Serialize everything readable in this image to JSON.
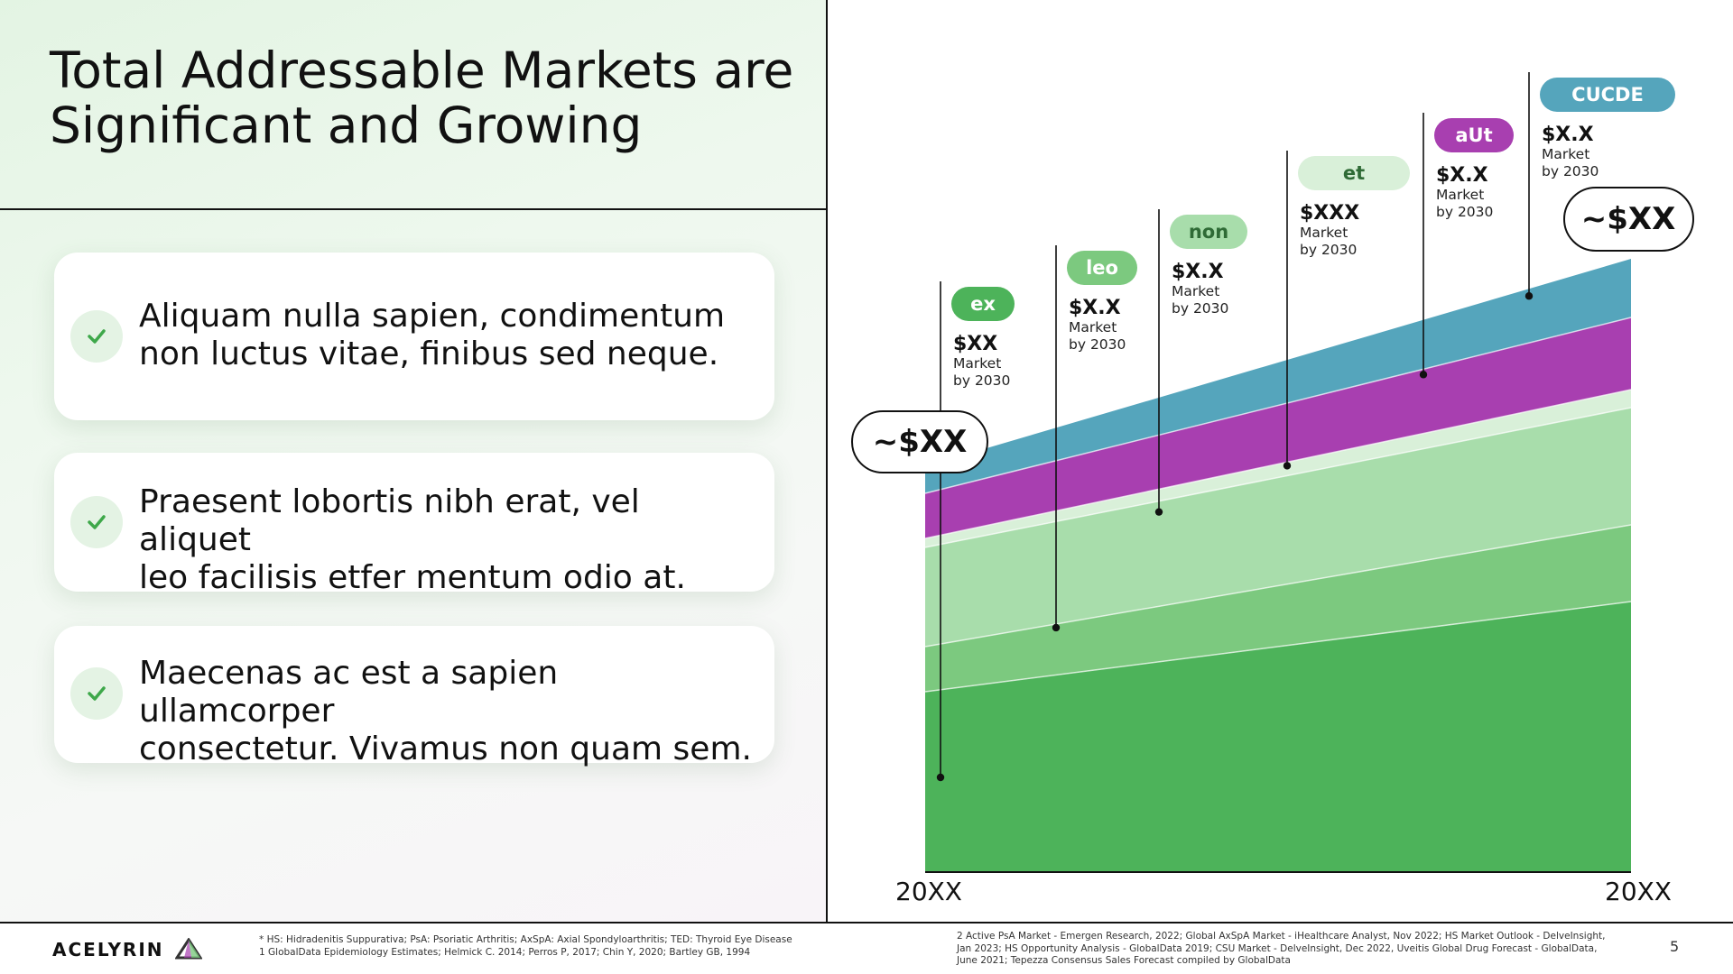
{
  "slide": {
    "title_line1": "Total Addressable Markets are",
    "title_line2": "Significant and Growing",
    "page_number": "5",
    "logo_text": "ACELYRIN"
  },
  "bullets": [
    {
      "line1": "Aliquam nulla sapien, condimentum",
      "line2": "non luctus vitae, finibus sed neque."
    },
    {
      "line1": "Praesent lobortis nibh erat, vel aliquet",
      "line2": "leo facilisis etfer mentum odio at."
    },
    {
      "line1": "Maecenas ac est a sapien ullamcorper",
      "line2": "consectetur. Vivamus non quam sem."
    }
  ],
  "footnotes": {
    "left_line1": "* HS: Hidradenitis Suppurativa; PsA: Psoriatic Arthritis; AxSpA: Axial Spondyloarthritis; TED: Thyroid Eye Disease",
    "left_line2": "1 GlobalData Epidemiology Estimates; Helmick C. 2014; Perros P, 2017; Chin Y, 2020; Bartley GB, 1994",
    "right_line1": "2 Active PsA Market - Emergen Research, 2022; Global AxSpA Market - iHealthcare Analyst, Nov 2022; HS Market Outlook - DelveInsight,",
    "right_line2": "Jan 2023; HS Opportunity Analysis - GlobalData 2019; CSU Market - DelveInsight, Dec 2022, Uveitis Global Drug Forecast - GlobalData,",
    "right_line3": "June 2021; Tepezza Consensus Sales Forecast compiled by GlobalData"
  },
  "colors": {
    "green_dark": "#4db35a",
    "green_mid": "#7cc97f",
    "green_light": "#a8ddab",
    "green_pale": "#d9f0d9",
    "purple": "#a83fb0",
    "teal": "#55a5bc",
    "check": "#3ea84a"
  },
  "icons": [
    "check-icon",
    "logo-triangle-icon"
  ],
  "chart_data": {
    "type": "area",
    "stacked": true,
    "x": [
      "20XX",
      "20XX"
    ],
    "start_total_label": "~$XX",
    "end_total_label": "~$XX",
    "series": [
      {
        "name": "ex",
        "start": 0.2,
        "end": 0.3,
        "color": "#4db35a",
        "value_label": "$XX",
        "note_line1": "Market",
        "note_line2": "by 2030"
      },
      {
        "name": "",
        "start": 0.05,
        "end": 0.085,
        "color": "#7cc97f"
      },
      {
        "name": "leo",
        "start": 0.11,
        "end": 0.13,
        "color": "#a8ddab",
        "value_label": "$X.X",
        "note_line1": "Market",
        "note_line2": "by 2030"
      },
      {
        "name": "non",
        "start": 0.01,
        "end": 0.02,
        "color": "#d9f0d9",
        "value_label": "$X.X",
        "note_line1": "Market",
        "note_line2": "by 2030"
      },
      {
        "name": "et",
        "start": 0.05,
        "end": 0.08,
        "color": "#a83fb0",
        "value_label": "$XXX",
        "note_line1": "Market",
        "note_line2": "by 2030"
      },
      {
        "name": "aUt",
        "start": 0.03,
        "end": 0.065,
        "color": "#55a5bc",
        "value_label": "$X.X",
        "note_line1": "Market",
        "note_line2": "by 2030"
      }
    ],
    "callouts": [
      {
        "label": "ex",
        "pill_color": "#4db35a",
        "text_color": "#ffffff",
        "value_label": "$XX",
        "note_line1": "Market",
        "note_line2": "by 2030"
      },
      {
        "label": "leo",
        "pill_color": "#7cc97f",
        "text_color": "#ffffff",
        "value_label": "$X.X",
        "note_line1": "Market",
        "note_line2": "by 2030"
      },
      {
        "label": "non",
        "pill_color": "#a8ddab",
        "text_color": "#2f6b36",
        "value_label": "$X.X",
        "note_line1": "Market",
        "note_line2": "by 2030"
      },
      {
        "label": "et",
        "pill_color": "#d9f0d9",
        "text_color": "#2f6b36",
        "value_label": "$XXX",
        "note_line1": "Market",
        "note_line2": "by 2030"
      },
      {
        "label": "aUt",
        "pill_color": "#a83fb0",
        "text_color": "#ffffff",
        "value_label": "$X.X",
        "note_line1": "Market",
        "note_line2": "by 2030"
      },
      {
        "label": "CUCDE",
        "pill_color": "#55a5bc",
        "text_color": "#ffffff",
        "value_label": "$X.X",
        "note_line1": "Market",
        "note_line2": "by 2030"
      }
    ]
  }
}
